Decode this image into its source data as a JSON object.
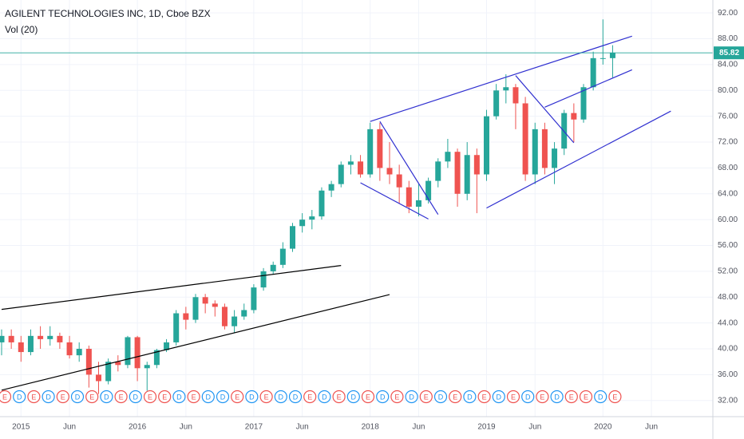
{
  "chart_data": {
    "type": "candlestick",
    "title": "AGILENT TECHNOLOGIES INC, 1D, Cboe BZX",
    "study": "Vol (20)",
    "x": [
      "2014-11",
      "2014-12",
      "2015-01",
      "2015-02",
      "2015-03",
      "2015-04",
      "2015-05",
      "2015-06",
      "2015-07",
      "2015-08",
      "2015-09",
      "2015-10",
      "2015-11",
      "2015-12",
      "2016-01",
      "2016-02",
      "2016-03",
      "2016-04",
      "2016-05",
      "2016-06",
      "2016-07",
      "2016-08",
      "2016-09",
      "2016-10",
      "2016-11",
      "2016-12",
      "2017-01",
      "2017-02",
      "2017-03",
      "2017-04",
      "2017-05",
      "2017-06",
      "2017-07",
      "2017-08",
      "2017-09",
      "2017-10",
      "2017-11",
      "2017-12",
      "2018-01",
      "2018-02",
      "2018-03",
      "2018-04",
      "2018-05",
      "2018-06",
      "2018-07",
      "2018-08",
      "2018-09",
      "2018-10",
      "2018-11",
      "2018-12",
      "2019-01",
      "2019-02",
      "2019-03",
      "2019-04",
      "2019-05",
      "2019-06",
      "2019-07",
      "2019-08",
      "2019-09",
      "2019-10",
      "2019-11",
      "2019-12",
      "2020-01",
      "2020-02"
    ],
    "ohlc": [
      [
        41,
        43,
        39,
        42
      ],
      [
        42,
        43,
        40,
        41
      ],
      [
        41,
        42,
        38,
        39.5
      ],
      [
        39.5,
        43,
        39,
        42
      ],
      [
        42,
        43.5,
        40,
        41.5
      ],
      [
        41.5,
        43.5,
        40.5,
        42
      ],
      [
        42,
        42.5,
        40,
        41
      ],
      [
        41,
        42,
        38.5,
        39
      ],
      [
        39,
        41,
        38,
        40
      ],
      [
        40,
        40.5,
        34,
        36
      ],
      [
        36,
        38,
        33,
        35
      ],
      [
        35,
        38.5,
        34.5,
        38
      ],
      [
        38,
        39,
        36.5,
        37.5
      ],
      [
        37.5,
        42,
        37,
        41.8
      ],
      [
        41.8,
        42,
        35,
        37
      ],
      [
        37,
        38,
        33.5,
        37.5
      ],
      [
        37.5,
        40,
        37,
        39.8
      ],
      [
        39.8,
        41.5,
        39.5,
        41
      ],
      [
        41,
        46,
        40.5,
        45.5
      ],
      [
        45.5,
        46.5,
        43,
        44.5
      ],
      [
        44.5,
        48.5,
        44,
        48
      ],
      [
        48,
        48.5,
        45.5,
        47
      ],
      [
        47,
        47.5,
        45,
        46.5
      ],
      [
        46.5,
        47,
        43,
        43.5
      ],
      [
        43.5,
        46,
        42.5,
        45
      ],
      [
        45,
        47,
        44.5,
        46
      ],
      [
        46,
        50,
        45.5,
        49.5
      ],
      [
        49.5,
        52.5,
        49,
        52
      ],
      [
        52,
        53.5,
        51.5,
        53
      ],
      [
        53,
        56.5,
        52.5,
        55.5
      ],
      [
        55.5,
        59.5,
        55,
        59
      ],
      [
        59,
        61,
        58,
        60
      ],
      [
        60,
        61.5,
        58.5,
        60.5
      ],
      [
        60.5,
        65,
        60,
        64.5
      ],
      [
        64.5,
        66,
        63.5,
        65.5
      ],
      [
        65.5,
        69,
        65,
        68.5
      ],
      [
        68.5,
        70,
        67,
        69
      ],
      [
        69,
        70,
        66.5,
        67
      ],
      [
        67,
        75,
        66.5,
        74
      ],
      [
        74,
        75,
        66,
        68
      ],
      [
        68,
        72,
        65.5,
        67
      ],
      [
        67,
        68.5,
        62.5,
        65
      ],
      [
        65,
        66,
        61,
        62
      ],
      [
        62,
        65.5,
        60.5,
        63
      ],
      [
        63,
        66.5,
        62.5,
        66
      ],
      [
        66,
        69.5,
        65,
        69
      ],
      [
        69,
        72.5,
        68,
        70.5
      ],
      [
        70.5,
        71,
        62,
        64
      ],
      [
        64,
        72,
        63,
        70
      ],
      [
        70,
        71,
        61,
        67
      ],
      [
        67,
        77,
        66,
        76
      ],
      [
        76,
        81,
        75.5,
        80
      ],
      [
        80,
        82.5,
        78,
        80.5
      ],
      [
        80.5,
        81,
        74,
        78
      ],
      [
        78,
        79,
        66,
        67
      ],
      [
        67,
        75,
        65.5,
        74
      ],
      [
        74,
        75,
        67,
        68
      ],
      [
        68,
        72,
        65.5,
        71
      ],
      [
        71,
        77,
        70,
        76.5
      ],
      [
        76.5,
        78,
        72,
        75.5
      ],
      [
        75.5,
        81,
        75,
        80.5
      ],
      [
        80.5,
        86,
        80,
        85
      ],
      [
        85,
        91,
        84,
        85
      ],
      [
        85,
        87,
        82,
        85.82
      ]
    ],
    "up_color": "#26a69a",
    "down_color": "#ef5350",
    "last_price": {
      "value": 85.82,
      "label": "85.82"
    },
    "ylim": [
      29.5,
      94
    ],
    "yticks": [
      {
        "value": 32,
        "label": "32.00"
      },
      {
        "value": 36,
        "label": "36.00"
      },
      {
        "value": 40,
        "label": "40.00"
      },
      {
        "value": 44,
        "label": "44.00"
      },
      {
        "value": 48,
        "label": "48.00"
      },
      {
        "value": 52,
        "label": "52.00"
      },
      {
        "value": 56,
        "label": "56.00"
      },
      {
        "value": 60,
        "label": "60.00"
      },
      {
        "value": 64,
        "label": "64.00"
      },
      {
        "value": 68,
        "label": "68.00"
      },
      {
        "value": 72,
        "label": "72.00"
      },
      {
        "value": 76,
        "label": "76.00"
      },
      {
        "value": 80,
        "label": "80.00"
      },
      {
        "value": 84,
        "label": "84.00"
      },
      {
        "value": 88,
        "label": "88.00"
      },
      {
        "value": 92,
        "label": "92.00"
      }
    ],
    "xticks": [
      {
        "value": "2015-01",
        "label": "2015"
      },
      {
        "value": "2015-06",
        "label": "Jun"
      },
      {
        "value": "2016-01",
        "label": "2016"
      },
      {
        "value": "2016-06",
        "label": "Jun"
      },
      {
        "value": "2017-01",
        "label": "2017"
      },
      {
        "value": "2017-06",
        "label": "Jun"
      },
      {
        "value": "2018-01",
        "label": "2018"
      },
      {
        "value": "2018-06",
        "label": "Jun"
      },
      {
        "value": "2019-01",
        "label": "2019"
      },
      {
        "value": "2019-06",
        "label": "Jun"
      },
      {
        "value": "2020-01",
        "label": "2020"
      },
      {
        "value": "2020-06",
        "label": "Jun"
      }
    ],
    "grid": true,
    "trendlines": [
      {
        "from": [
          "2014-11",
          46.1
        ],
        "to": [
          "2017-10",
          52.9
        ],
        "color": "#000000"
      },
      {
        "from": [
          "2014-11",
          33.6
        ],
        "to": [
          "2018-03",
          48.4
        ],
        "color": "#000000"
      },
      {
        "from": [
          "2018-01",
          75.2
        ],
        "to": [
          "2020-04",
          88.4
        ],
        "color": "#3030d0"
      },
      {
        "from": [
          "2017-12",
          65.7
        ],
        "to": [
          "2018-07",
          60.1
        ],
        "color": "#3030d0"
      },
      {
        "from": [
          "2018-02",
          75.2
        ],
        "to": [
          "2018-08",
          60.8
        ],
        "color": "#3030d0"
      },
      {
        "from": [
          "2019-01",
          61.8
        ],
        "to": [
          "2020-08",
          76.8
        ],
        "color": "#3030d0"
      },
      {
        "from": [
          "2019-04",
          82.3
        ],
        "to": [
          "2019-10",
          71.9
        ],
        "color": "#3030d0"
      },
      {
        "from": [
          "2019-07",
          77.4
        ],
        "to": [
          "2020-04",
          83.2
        ],
        "color": "#3030d0"
      }
    ],
    "events": [
      "E",
      "D",
      "E",
      "D",
      "E",
      "D",
      "E",
      "D",
      "E",
      "D",
      "E",
      "E",
      "D",
      "E",
      "D",
      "D",
      "E",
      "D",
      "E",
      "D",
      "D",
      "E",
      "D",
      "E",
      "D",
      "E",
      "D",
      "E",
      "D",
      "E",
      "D",
      "E",
      "D",
      "E",
      "D",
      "E",
      "D",
      "E",
      "D",
      "E",
      "E",
      "D",
      "E"
    ]
  }
}
